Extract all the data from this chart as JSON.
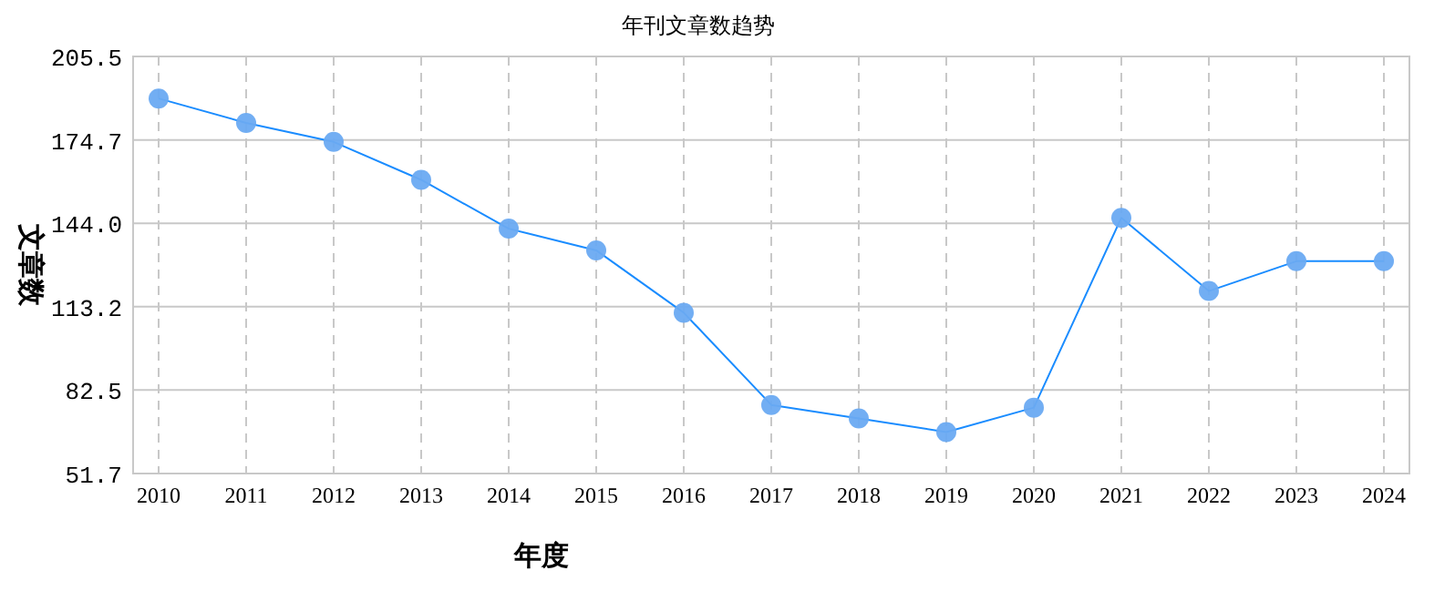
{
  "chart_data": {
    "type": "line",
    "title": "年刊文章数趋势",
    "xlabel": "年度",
    "ylabel": "文章数",
    "categories": [
      "2010",
      "2011",
      "2012",
      "2013",
      "2014",
      "2015",
      "2016",
      "2017",
      "2018",
      "2019",
      "2020",
      "2021",
      "2022",
      "2023",
      "2024"
    ],
    "series": [
      {
        "color": "#1a8cff",
        "values": [
          190,
          181,
          174,
          160,
          142,
          134,
          111,
          77,
          72,
          67,
          76,
          146,
          119,
          130,
          130
        ]
      }
    ],
    "ylim": [
      51.7,
      205.5
    ],
    "yticks": [
      {
        "value": 51.7,
        "label": "51.7"
      },
      {
        "value": 82.5,
        "label": "82.5"
      },
      {
        "value": 113.2,
        "label": "113.2"
      },
      {
        "value": 144.0,
        "label": "144.0"
      },
      {
        "value": 174.7,
        "label": "174.7"
      },
      {
        "value": 205.5,
        "label": "205.5"
      }
    ],
    "grid": true,
    "marker": "circle",
    "line_style": "solid"
  }
}
